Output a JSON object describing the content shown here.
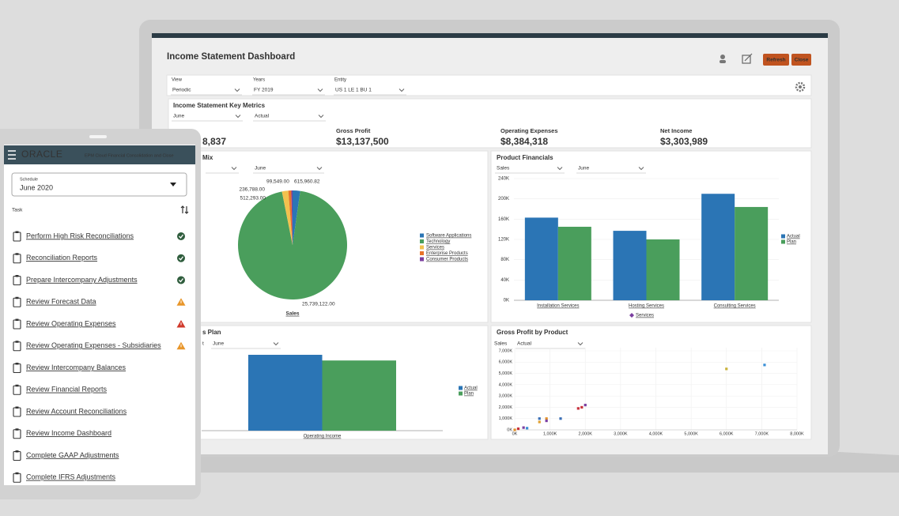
{
  "dashboard": {
    "title": "Income Statement Dashboard",
    "buttons": [
      "Refresh",
      "Close"
    ],
    "filters": [
      {
        "label": "View",
        "value": "Periodic"
      },
      {
        "label": "Years",
        "value": "FY 2019"
      },
      {
        "label": "Entity",
        "value": "US 1 LE 1 BU 1"
      }
    ],
    "key_metrics": {
      "title": "Income Statement Key Metrics",
      "selectors": [
        "June",
        "Actual"
      ],
      "metrics": [
        {
          "value": "8,837"
        },
        {
          "label": "Gross Profit",
          "value": "$13,137,500"
        },
        {
          "label": "Operating Expenses",
          "value": "$8,384,318"
        },
        {
          "label": "Net Income",
          "value": "$3,303,989"
        }
      ]
    },
    "revenue_mix": {
      "type": "pie",
      "title": "Mix",
      "selectors": [
        "June"
      ],
      "categories": [
        "Software Applications",
        "Technology",
        "Services",
        "Enterprise Products",
        "Consumer Products"
      ],
      "values": [
        615960.82,
        25739122,
        512293,
        236788,
        99549
      ],
      "value_labels": [
        "615,960.82",
        "25,739,122.00",
        "512,293.00",
        "236,788.00",
        "99,549.00"
      ],
      "colors": [
        "#2b75b5",
        "#4a9e5c",
        "#f2c14e",
        "#e8732a",
        "#7b3fa0"
      ],
      "xlabel": "Sales"
    },
    "product_financials": {
      "type": "bar",
      "title": "Product Financials",
      "selectors": [
        "Sales",
        "June"
      ],
      "categories": [
        "Installation Services",
        "Hosting Services",
        "Consulting Services"
      ],
      "series": [
        {
          "name": "Actual",
          "color": "#2b75b5",
          "values": [
            163000,
            137000,
            210000
          ]
        },
        {
          "name": "Plan",
          "color": "#4a9e5c",
          "values": [
            145000,
            120000,
            184000
          ]
        }
      ],
      "ylim": [
        0,
        240000
      ],
      "yticks": [
        {
          "value": 0,
          "label": "0K"
        },
        {
          "value": 40000,
          "label": "40K"
        },
        {
          "value": 80000,
          "label": "80K"
        },
        {
          "value": 120000,
          "label": "120K"
        },
        {
          "value": 160000,
          "label": "160K"
        },
        {
          "value": 200000,
          "label": "200K"
        },
        {
          "value": 240000,
          "label": "240K"
        }
      ],
      "xlabel": "Services"
    },
    "actual_vs_plan": {
      "type": "bar",
      "title": "s Plan",
      "selector_label": "t",
      "selectors": [
        "June"
      ],
      "categories": [
        "Operating Income"
      ],
      "series": [
        {
          "name": "Actual",
          "color": "#2b75b5",
          "values": [
            4000000
          ]
        },
        {
          "name": "Plan",
          "color": "#4a9e5c",
          "values": [
            3700000
          ]
        }
      ],
      "ylim": [
        0,
        4000000
      ]
    },
    "gross_profit_by_product": {
      "type": "scatter",
      "title": "Gross Profit by Product",
      "selector_label": "Sales",
      "selectors": [
        "Actual"
      ],
      "x": [
        6000000,
        7080000,
        1900000,
        2000000,
        1800000,
        700000,
        900000,
        1300000,
        700000,
        900000,
        100000,
        250000,
        350000,
        0
      ],
      "y": [
        5400000,
        5750000,
        2000000,
        2200000,
        1900000,
        1000000,
        1000000,
        1000000,
        700000,
        800000,
        100000,
        200000,
        150000,
        0
      ],
      "colors": [
        "#c9b23a",
        "#3a8fd6",
        "#c8323c",
        "#7b3fa0",
        "#c8323c",
        "#3a6fb5",
        "#e0902a",
        "#3a6fb5",
        "#e0a030",
        "#7b3fa0",
        "#c8323c",
        "#7b3fa0",
        "#3a8fd6",
        "#e0902a"
      ],
      "xlim": [
        0,
        8000000
      ],
      "ylim": [
        0,
        7000000
      ],
      "xticks": [
        {
          "value": 0,
          "label": "0K"
        },
        {
          "value": 1000000,
          "label": "1,000K"
        },
        {
          "value": 2000000,
          "label": "2,000K"
        },
        {
          "value": 3000000,
          "label": "3,000K"
        },
        {
          "value": 4000000,
          "label": "4,000K"
        },
        {
          "value": 5000000,
          "label": "5,000K"
        },
        {
          "value": 6000000,
          "label": "6,000K"
        },
        {
          "value": 7000000,
          "label": "7,000K"
        },
        {
          "value": 8000000,
          "label": "8,000K"
        }
      ],
      "yticks": [
        {
          "value": 0,
          "label": "0K"
        },
        {
          "value": 1000000,
          "label": "1,000K"
        },
        {
          "value": 2000000,
          "label": "2,000K"
        },
        {
          "value": 3000000,
          "label": "3,000K"
        },
        {
          "value": 4000000,
          "label": "4,000K"
        },
        {
          "value": 5000000,
          "label": "5,000K"
        },
        {
          "value": 6000000,
          "label": "6,000K"
        },
        {
          "value": 7000000,
          "label": "7,000K"
        }
      ],
      "grid": true
    }
  },
  "mobile": {
    "brand": "ORACLE",
    "app": "EPM Cloud Financial Consolidation and Close",
    "schedule_label": "Schedule",
    "schedule": "June 2020",
    "task_header": "Task",
    "tasks": [
      {
        "name": "Perform High Risk Reconciliations",
        "status": "done"
      },
      {
        "name": "Reconciliation Reports",
        "status": "done"
      },
      {
        "name": "Prepare Intercompany Adjustments",
        "status": "done"
      },
      {
        "name": "Review Forecast Data",
        "status": "warning"
      },
      {
        "name": "Review Operating Expenses",
        "status": "error"
      },
      {
        "name": "Review Operating Expenses - Subsidiaries",
        "status": "warning"
      },
      {
        "name": "Review Intercompany Balances",
        "status": "open"
      },
      {
        "name": "Review Financial Reports",
        "status": "open"
      },
      {
        "name": "Review Account Reconciliations",
        "status": "open"
      },
      {
        "name": "Review Income Dashboard",
        "status": "open"
      },
      {
        "name": "Complete GAAP Adjustments",
        "status": "open"
      },
      {
        "name": "Complete IFRS Adjustments",
        "status": "open"
      }
    ]
  }
}
